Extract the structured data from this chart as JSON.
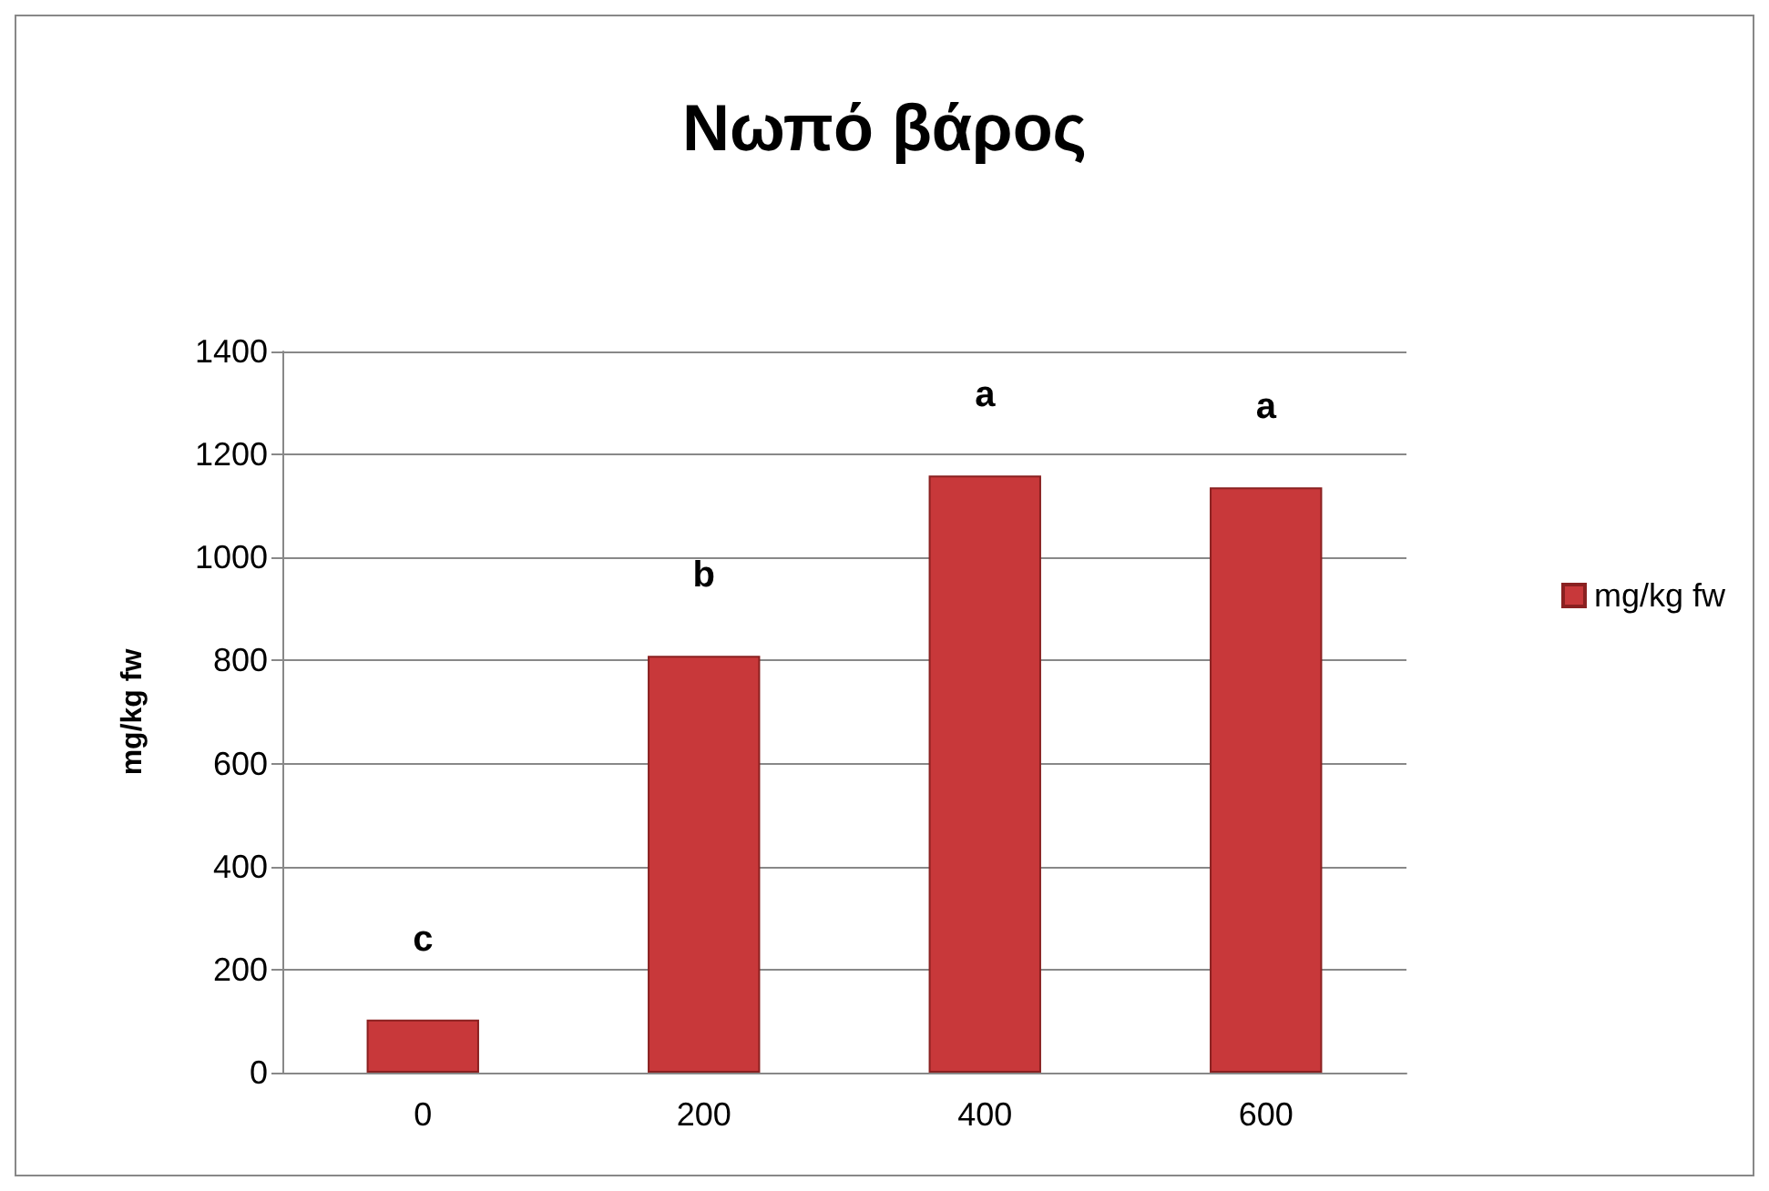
{
  "chart_data": {
    "type": "bar",
    "title": "Νωπό βάρος",
    "ylabel": "mg/kg fw",
    "categories": [
      "0",
      "200",
      "400",
      "600"
    ],
    "series": [
      {
        "name": "mg/kg fw",
        "color": "#c8383a",
        "values": [
          103,
          809,
          1159,
          1136
        ],
        "value_labels": [
          "c",
          "b",
          "a",
          "a"
        ]
      }
    ],
    "ylim": [
      0,
      1400
    ],
    "yticks": [
      0,
      200,
      400,
      600,
      800,
      1000,
      1200,
      1400
    ],
    "grid": "y",
    "legend": "right"
  }
}
